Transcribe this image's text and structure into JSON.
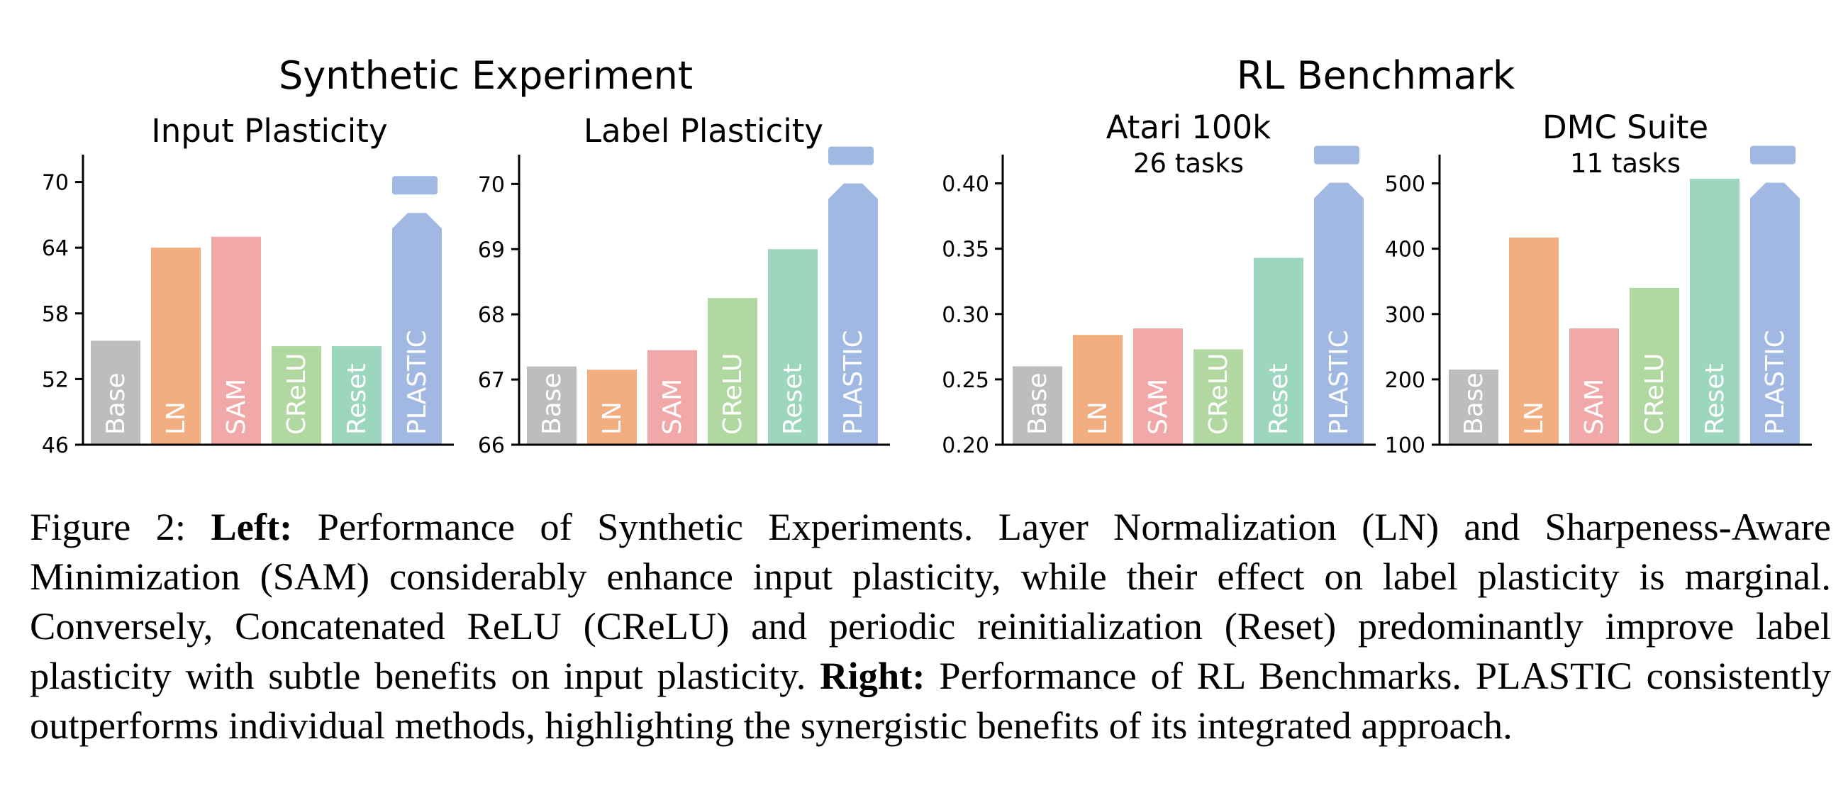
{
  "group_titles": {
    "left": "Synthetic Experiment",
    "right": "RL Benchmark"
  },
  "bar_colors": {
    "Base": "#bdbdbd",
    "LN": "#f2ae80",
    "SAM": "#f0a8a8",
    "CReLU": "#b2d8a2",
    "Reset": "#9dd6be",
    "PLASTIC": "#a1b9e2"
  },
  "chart_data": [
    {
      "type": "bar",
      "title": "Input Plasticity",
      "subtitle": "",
      "categories": [
        "Base",
        "LN",
        "SAM",
        "CReLU",
        "Reset",
        "PLASTIC"
      ],
      "values": [
        55.5,
        64.0,
        65.0,
        55.0,
        55.0,
        69.5
      ],
      "ylim": [
        46,
        72.5
      ],
      "yticks": [
        46,
        52,
        58,
        64,
        70
      ],
      "ytick_labels": [
        "46",
        "52",
        "58",
        "64",
        "70"
      ],
      "broken_bar": "PLASTIC"
    },
    {
      "type": "bar",
      "title": "Label Plasticity",
      "subtitle": "",
      "categories": [
        "Base",
        "LN",
        "SAM",
        "CReLU",
        "Reset",
        "PLASTIC"
      ],
      "values": [
        67.2,
        67.15,
        67.45,
        68.25,
        69.0,
        70.4
      ],
      "ylim": [
        66,
        70.45
      ],
      "yticks": [
        66,
        67,
        68,
        69,
        70
      ],
      "ytick_labels": [
        "66",
        "67",
        "68",
        "69",
        "70"
      ],
      "broken_bar": "PLASTIC"
    },
    {
      "type": "bar",
      "title": "Atari 100k",
      "subtitle": "26 tasks",
      "categories": [
        "Base",
        "LN",
        "SAM",
        "CReLU",
        "Reset",
        "PLASTIC"
      ],
      "values": [
        0.26,
        0.284,
        0.289,
        0.273,
        0.343,
        0.42
      ],
      "ylim": [
        0.2,
        0.422
      ],
      "yticks": [
        0.2,
        0.25,
        0.3,
        0.35,
        0.4
      ],
      "ytick_labels": [
        "0.20",
        "0.25",
        "0.30",
        "0.35",
        "0.40"
      ],
      "broken_bar": "PLASTIC"
    },
    {
      "type": "bar",
      "title": "DMC Suite",
      "subtitle": "11 tasks",
      "categories": [
        "Base",
        "LN",
        "SAM",
        "CReLU",
        "Reset",
        "PLASTIC"
      ],
      "values": [
        215,
        417,
        278,
        340,
        507,
        540
      ],
      "ylim": [
        100,
        544
      ],
      "yticks": [
        100,
        200,
        300,
        400,
        500
      ],
      "ytick_labels": [
        "100",
        "200",
        "300",
        "400",
        "500"
      ],
      "broken_bar": "PLASTIC"
    }
  ],
  "caption": {
    "prefix": "Figure 2: ",
    "left_label": "Left:",
    "left_text": " Performance of Synthetic Experiments. Layer Normalization (LN) and Sharpeness-Aware Minimization (SAM) considerably enhance input plasticity, while their effect on label plasticity is marginal. Conversely, Concatenated ReLU (CReLU) and periodic reinitialization (Reset) predomi­nantly improve label plasticity with subtle benefits on input plasticity. ",
    "right_label": "Right:",
    "right_text": " Performance of RL Benchmarks. PLASTIC consistently outperforms individual methods, highlighting the synergistic benefits of its integrated approach."
  }
}
